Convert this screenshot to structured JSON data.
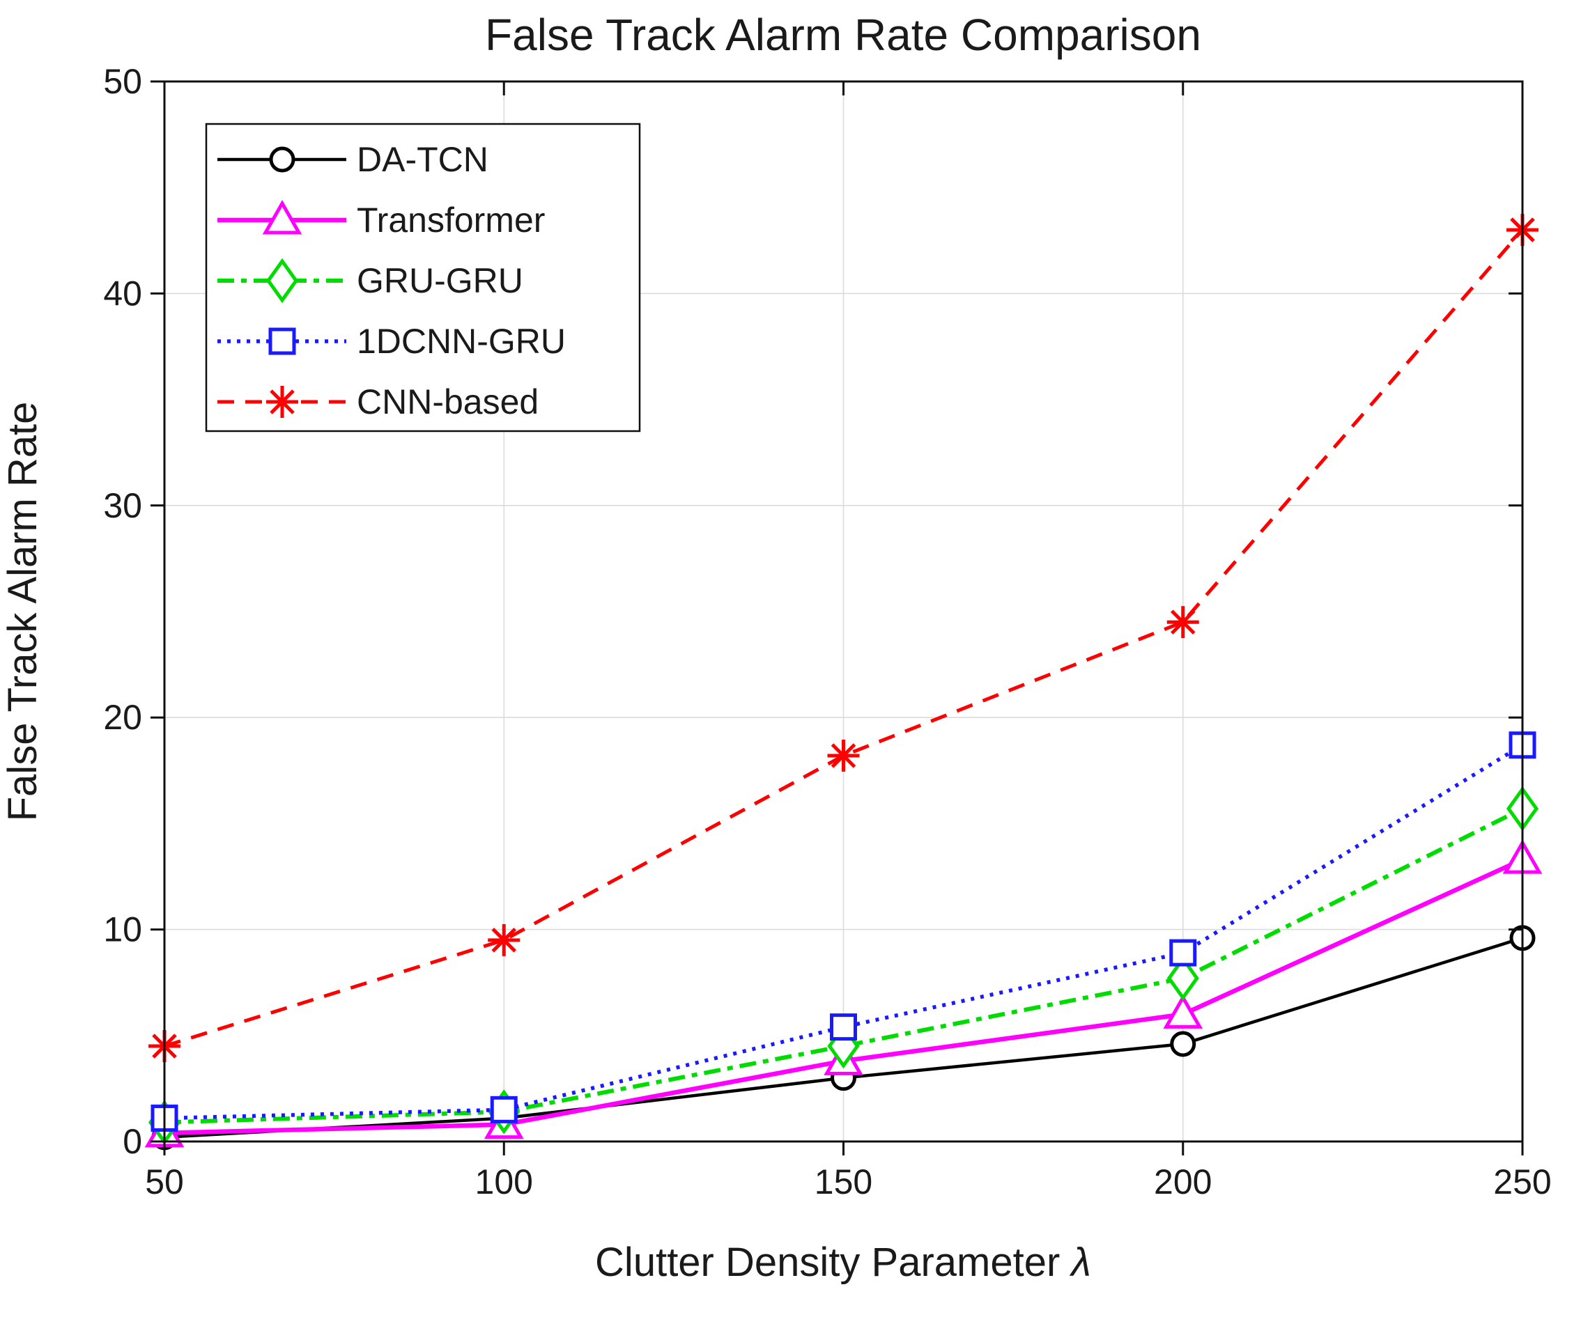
{
  "figure": {
    "title": "False Track Alarm Rate Comparison",
    "xlabel_text": "Clutter Density Parameter ",
    "xlabel_symbol": "λ",
    "ylabel": "False Track Alarm Rate"
  },
  "colors": {
    "background": "#ffffff",
    "axis": "#0f0f0f",
    "grid": "#dbdbdb",
    "text": "#1a1a1a",
    "legend_border": "#0f0f0f",
    "legend_background": "#ffffff"
  },
  "chart_data": {
    "type": "line",
    "title": "False Track Alarm Rate Comparison",
    "xlabel": "Clutter Density Parameter λ",
    "ylabel": "False Track Alarm Rate",
    "x": [
      50,
      100,
      150,
      200,
      250
    ],
    "xlim": [
      50,
      250
    ],
    "ylim": [
      0,
      50
    ],
    "xticks": [
      50,
      100,
      150,
      200,
      250
    ],
    "yticks": [
      0,
      10,
      20,
      30,
      40,
      50
    ],
    "grid": true,
    "legend_position": "top-left-inside",
    "series": [
      {
        "name": "DA-TCN",
        "color": "#000000",
        "line_style": "solid",
        "line_width": 4.5,
        "marker": "circle",
        "values": [
          0.2,
          1.1,
          3.0,
          4.6,
          9.6
        ]
      },
      {
        "name": "Transformer",
        "color": "#ff00ff",
        "line_style": "solid",
        "line_width": 6.5,
        "marker": "triangle",
        "values": [
          0.4,
          0.8,
          3.8,
          6.0,
          13.3
        ]
      },
      {
        "name": "GRU-GRU",
        "color": "#00dc00",
        "line_style": "dashdot",
        "line_width": 6.0,
        "marker": "diamond",
        "values": [
          0.9,
          1.4,
          4.5,
          7.7,
          15.7
        ]
      },
      {
        "name": "1DCNN-GRU",
        "color": "#1a1aff",
        "line_style": "dotted",
        "line_width": 5.5,
        "marker": "square",
        "values": [
          1.1,
          1.5,
          5.4,
          8.9,
          18.7
        ]
      },
      {
        "name": "CNN-based",
        "color": "#ff0000",
        "line_style": "dashed",
        "line_width": 5.0,
        "marker": "asterisk",
        "values": [
          4.5,
          9.5,
          18.2,
          24.5,
          43.0
        ]
      }
    ]
  }
}
